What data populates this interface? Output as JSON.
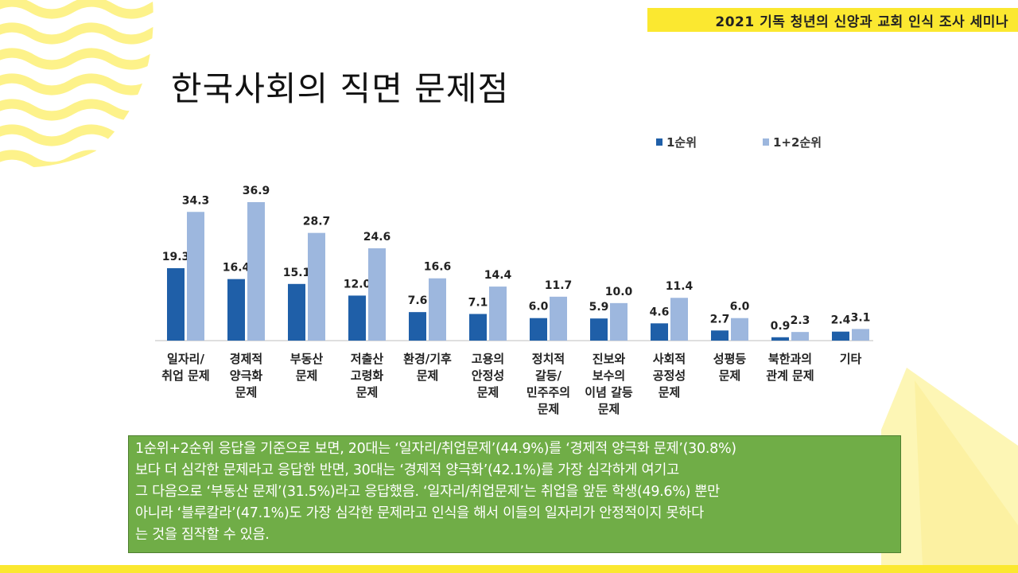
{
  "header": {
    "tag": "2021 기독 청년의 신앙과 교회 인식 조사 세미나"
  },
  "title": "한국사회의 직면 문제점",
  "colors": {
    "accent_yellow": "#fbe830",
    "wave_yellow": "#fdf28a",
    "series_1": "#1f5fa8",
    "series_2": "#9db7de",
    "callout_bg": "#70ad47"
  },
  "chart_data": {
    "type": "bar",
    "title": "",
    "xlabel": "",
    "ylabel": "",
    "ylim": [
      0,
      40
    ],
    "grid": false,
    "legend_position": "top-right",
    "categories": [
      [
        "일자리/",
        "취업 문제"
      ],
      [
        "경제적",
        "양극화",
        "문제"
      ],
      [
        "부동산",
        "문제"
      ],
      [
        "저출산",
        "고령화",
        "문제"
      ],
      [
        "환경/기후",
        "문제"
      ],
      [
        "고용의",
        "안정성",
        "문제"
      ],
      [
        "정치적",
        "갈등/",
        "민주주의",
        "문제"
      ],
      [
        "진보와",
        "보수의",
        "이념 갈등",
        "문제"
      ],
      [
        "사회적",
        "공정성",
        "문제"
      ],
      [
        "성평등",
        "문제"
      ],
      [
        "북한과의",
        "관계 문제"
      ],
      [
        "기타"
      ]
    ],
    "series": [
      {
        "name": "1순위",
        "values": [
          19.3,
          16.4,
          15.1,
          12.0,
          7.6,
          7.1,
          6.0,
          5.9,
          4.6,
          2.7,
          0.9,
          2.4
        ]
      },
      {
        "name": "1+2순위",
        "values": [
          34.3,
          36.9,
          28.7,
          24.6,
          16.6,
          14.4,
          11.7,
          10.0,
          11.4,
          6.0,
          2.3,
          3.1
        ]
      }
    ]
  },
  "callout": {
    "lines": [
      "1순위+2순위 응답을 기준으로 보면, 20대는 ‘일자리/취업문제’(44.9%)를 ‘경제적 양극화 문제’(30.8%)",
      "보다 더 심각한 문제라고 응답한 반면, 30대는 ‘경제적 양극화’(42.1%)를 가장 심각하게 여기고",
      "그 다음으로 ‘부동산 문제’(31.5%)라고 응답했음. ‘일자리/취업문제’는 취업을 앞둔 학생(49.6%) 뿐만",
      "아니라 ‘블루칼라’(47.1%)도 가장 심각한 문제라고 인식을 해서 이들의 일자리가 안정적이지 못하다",
      "는 것을 짐작할 수 있음."
    ]
  }
}
